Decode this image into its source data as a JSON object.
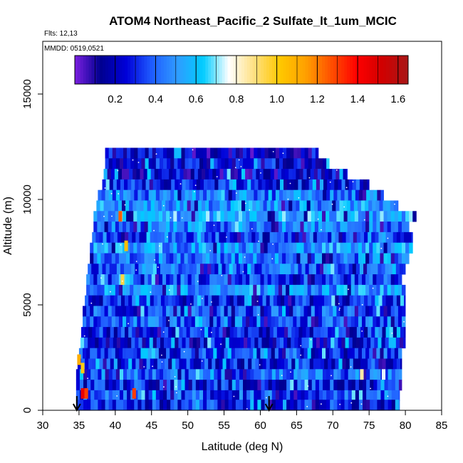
{
  "chart_data": {
    "type": "heatmap",
    "title": "ATOM4 Northeast_Pacific_2 Sulfate_lt_1um_MCIC",
    "flights_note": "Flts: 12,13",
    "mmdd_note": "MMDD: 0519,0521",
    "xlabel": "Latitude (deg N)",
    "ylabel": "Altitude (m)",
    "xlim": [
      30,
      85
    ],
    "ylim": [
      0,
      17500
    ],
    "x_ticks": [
      "30",
      "35",
      "40",
      "45",
      "50",
      "55",
      "60",
      "65",
      "70",
      "75",
      "80",
      "85"
    ],
    "y_ticks": [
      "0",
      "5000",
      "10000",
      "15000"
    ],
    "colorbar": {
      "range": [
        0.0,
        1.65
      ],
      "ticks": [
        "0.2",
        "0.4",
        "0.6",
        "0.8",
        "1.0",
        "1.2",
        "1.4",
        "1.6"
      ],
      "stops": [
        "#7b1fe0",
        "#00008f",
        "#0000d8",
        "#1f5cff",
        "#2f9cff",
        "#00ccff",
        "#ffffff",
        "#ffe080",
        "#ffc800",
        "#ffa000",
        "#ff5000",
        "#ff0000",
        "#d00000",
        "#a81818"
      ]
    },
    "flight_markers_latitude": [
      34.7,
      61.2
    ],
    "grid_rows": [
      {
        "alt": 12200,
        "lat_min": 38.6,
        "lat_max": 68.0,
        "base": 0.2
      },
      {
        "alt": 11700,
        "lat_min": 38.6,
        "lat_max": 69.5,
        "base": 0.25
      },
      {
        "alt": 11200,
        "lat_min": 38.4,
        "lat_max": 72.0,
        "base": 0.2
      },
      {
        "alt": 10700,
        "lat_min": 38.2,
        "lat_max": 75.0,
        "base": 0.3
      },
      {
        "alt": 10200,
        "lat_min": 37.6,
        "lat_max": 77.0,
        "base": 0.45
      },
      {
        "alt": 9700,
        "lat_min": 37.4,
        "lat_max": 79.0,
        "base": 0.5
      },
      {
        "alt": 9200,
        "lat_min": 37.0,
        "lat_max": 81.5,
        "base": 0.55
      },
      {
        "alt": 8700,
        "lat_min": 37.0,
        "lat_max": 80.5,
        "base": 0.45
      },
      {
        "alt": 8200,
        "lat_min": 36.8,
        "lat_max": 81.0,
        "base": 0.35
      },
      {
        "alt": 7700,
        "lat_min": 36.5,
        "lat_max": 81.0,
        "base": 0.5
      },
      {
        "alt": 7200,
        "lat_min": 36.5,
        "lat_max": 80.5,
        "base": 0.45
      },
      {
        "alt": 6700,
        "lat_min": 36.2,
        "lat_max": 80.0,
        "base": 0.4
      },
      {
        "alt": 6200,
        "lat_min": 36.0,
        "lat_max": 79.5,
        "base": 0.35
      },
      {
        "alt": 5700,
        "lat_min": 36.0,
        "lat_max": 80.0,
        "base": 0.5
      },
      {
        "alt": 5200,
        "lat_min": 35.8,
        "lat_max": 80.0,
        "base": 0.3
      },
      {
        "alt": 4700,
        "lat_min": 35.5,
        "lat_max": 80.0,
        "base": 0.35
      },
      {
        "alt": 4200,
        "lat_min": 35.5,
        "lat_max": 80.0,
        "base": 0.4
      },
      {
        "alt": 3700,
        "lat_min": 35.3,
        "lat_max": 80.0,
        "base": 0.3
      },
      {
        "alt": 3200,
        "lat_min": 35.2,
        "lat_max": 80.0,
        "base": 0.25
      },
      {
        "alt": 2700,
        "lat_min": 35.0,
        "lat_max": 79.5,
        "base": 0.35
      },
      {
        "alt": 2200,
        "lat_min": 34.8,
        "lat_max": 79.5,
        "base": 0.3
      },
      {
        "alt": 1700,
        "lat_min": 34.6,
        "lat_max": 79.5,
        "base": 0.4
      },
      {
        "alt": 1200,
        "lat_min": 34.6,
        "lat_max": 79.5,
        "base": 0.3
      },
      {
        "alt": 700,
        "lat_min": 34.6,
        "lat_max": 79.2,
        "base": 0.35
      },
      {
        "alt": 250,
        "lat_min": 34.6,
        "lat_max": 79.2,
        "base": 0.3
      }
    ],
    "highlight_cells": [
      {
        "lat": 35.0,
        "alt": 2400,
        "value": 1.1
      },
      {
        "lat": 35.5,
        "alt": 2000,
        "value": 1.0
      },
      {
        "lat": 35.5,
        "alt": 800,
        "value": 1.45
      },
      {
        "lat": 36.0,
        "alt": 800,
        "value": 1.3
      },
      {
        "lat": 40.7,
        "alt": 9200,
        "value": 1.25
      },
      {
        "lat": 41.5,
        "alt": 7800,
        "value": 1.05
      },
      {
        "lat": 42.6,
        "alt": 800,
        "value": 1.3
      },
      {
        "lat": 41.0,
        "alt": 6200,
        "value": 0.95
      },
      {
        "lat": 74.0,
        "alt": 1700,
        "value": 0.85
      },
      {
        "lat": 77.0,
        "alt": 1700,
        "value": 0.75
      }
    ]
  }
}
